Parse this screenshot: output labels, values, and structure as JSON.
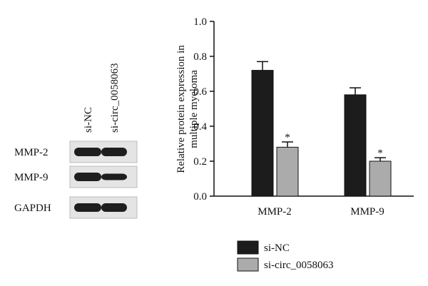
{
  "chart_data": {
    "type": "bar",
    "ylabel": [
      "Relative protein expression in",
      "multiple myeloma"
    ],
    "categories": [
      "MMP-2",
      "MMP-9"
    ],
    "series": [
      {
        "name": "si-NC",
        "color": "#1c1c1c",
        "values": [
          0.72,
          0.58
        ],
        "errors": [
          0.05,
          0.04
        ]
      },
      {
        "name": "si-circ_0058063",
        "color": "#ababab",
        "values": [
          0.28,
          0.2
        ],
        "errors": [
          0.03,
          0.02
        ],
        "annotations": [
          "*",
          "*"
        ]
      }
    ],
    "ylim": [
      0,
      1.0
    ],
    "yticks": [
      {
        "value": 0,
        "label": "0.0"
      },
      0.2,
      0.4,
      0.6,
      0.8,
      {
        "value": 1.0,
        "label": "1.0"
      }
    ],
    "legend": "bottom"
  },
  "blot": {
    "lanes": [
      "si-NC",
      "si-circ_0058063"
    ],
    "rows": [
      "MMP-2",
      "MMP-9",
      "GAPDH"
    ]
  }
}
